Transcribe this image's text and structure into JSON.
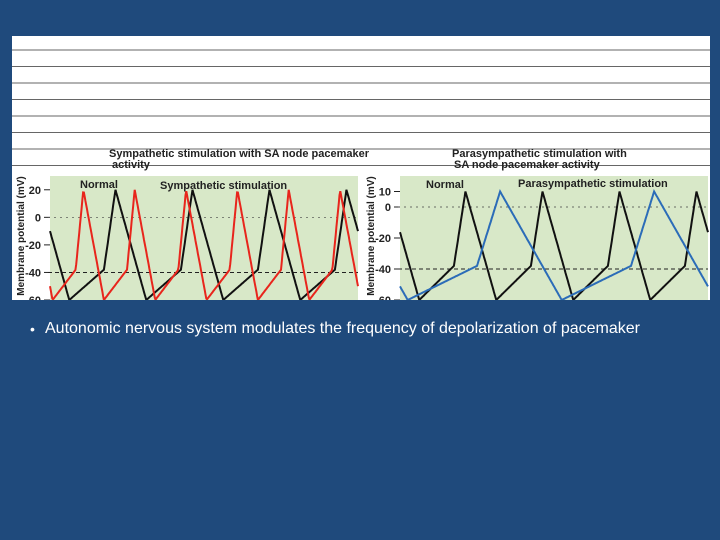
{
  "slide": {
    "bullet_text": "Autonomic nervous system modulates the frequency of depolarization of pacemaker"
  },
  "chart_data": [
    {
      "type": "line",
      "title": "Sympathetic stimulation with SA node pacemaker activity",
      "ylabel": "Membrane potential (mV)",
      "ylim": [
        -60,
        30
      ],
      "yticks": [
        20,
        0,
        -20,
        -40,
        -60
      ],
      "threshold_mv": -40,
      "labels": [
        "Normal",
        "Sympathetic stimulation"
      ],
      "series": [
        {
          "name": "Normal",
          "color": "#111111",
          "peaks": 4,
          "peak_mv": 20,
          "trough_mv": -60
        },
        {
          "name": "Sympathetic stimulation",
          "color": "#e8251c",
          "peaks": 6,
          "peak_mv": 20,
          "trough_mv": -60
        }
      ]
    },
    {
      "type": "line",
      "title": "Parasympathetic stimulation with SA node pacemaker activity",
      "ylabel": "Membrane potential (mV)",
      "ylim": [
        -60,
        20
      ],
      "yticks": [
        10,
        0,
        -20,
        -40,
        -60
      ],
      "threshold_mv": -40,
      "labels": [
        "Normal",
        "Parasympathetic stimulation"
      ],
      "series": [
        {
          "name": "Normal",
          "color": "#111111",
          "peaks": 4,
          "peak_mv": 10,
          "trough_mv": -60
        },
        {
          "name": "Parasympathetic stimulation",
          "color": "#2b6cb8",
          "peaks": 2,
          "peak_mv": 10,
          "trough_mv": -60
        }
      ]
    }
  ]
}
